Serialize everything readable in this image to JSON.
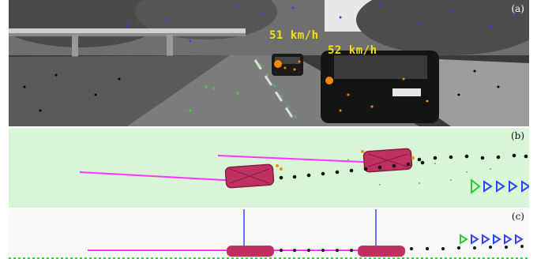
{
  "panels": {
    "a": {
      "label": "(a)",
      "speed_far": "51 km/h",
      "speed_near": "52 km/h"
    },
    "b": {
      "label": "(b)"
    },
    "c": {
      "label": "(c)"
    }
  },
  "colors": {
    "trajectory": "#ff33ff",
    "car_box": "#c03060",
    "track_points": "#111111",
    "future_marker": "#3344ff",
    "current_marker": "#22cc33",
    "ground_points": "#44cc44",
    "speed_text": "#f2e200",
    "track_feature": "#ff8800"
  }
}
